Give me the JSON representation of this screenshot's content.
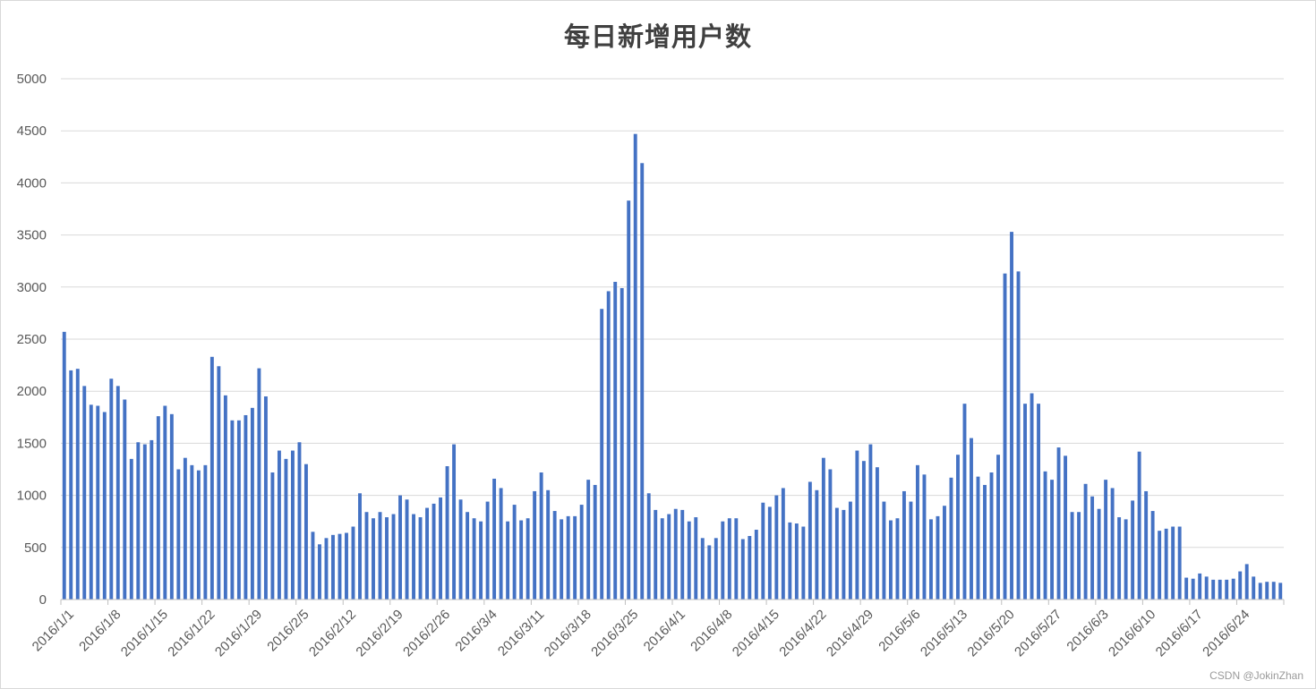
{
  "chart_data": {
    "type": "bar",
    "title": "每日新增用户数",
    "xlabel": "",
    "ylabel": "",
    "ylim": [
      0,
      5000
    ],
    "yticks": [
      0,
      500,
      1000,
      1500,
      2000,
      2500,
      3000,
      3500,
      4000,
      4500,
      5000
    ],
    "grid": true,
    "legend": "none",
    "bar_color": "#4472c4",
    "grid_color": "#d9d9d9",
    "x_tick_labels": [
      "2016/1/1",
      "2016/1/8",
      "2016/1/15",
      "2016/1/22",
      "2016/1/29",
      "2016/2/5",
      "2016/2/12",
      "2016/2/19",
      "2016/2/26",
      "2016/3/4",
      "2016/3/11",
      "2016/3/18",
      "2016/3/25",
      "2016/4/1",
      "2016/4/8",
      "2016/4/15",
      "2016/4/22",
      "2016/4/29",
      "2016/5/6",
      "2016/5/13",
      "2016/5/20",
      "2016/5/27",
      "2016/6/3",
      "2016/6/10",
      "2016/6/17",
      "2016/6/24"
    ],
    "start_date": "2016/1/1",
    "values": [
      2570,
      2200,
      2215,
      2050,
      1870,
      1860,
      1800,
      2120,
      2050,
      1920,
      1350,
      1510,
      1490,
      1530,
      1760,
      1860,
      1780,
      1250,
      1360,
      1290,
      1240,
      1290,
      2330,
      2240,
      1960,
      1720,
      1720,
      1770,
      1840,
      2220,
      1950,
      1220,
      1430,
      1350,
      1430,
      1510,
      1300,
      650,
      530,
      590,
      620,
      630,
      640,
      700,
      1020,
      840,
      780,
      840,
      790,
      820,
      1000,
      960,
      820,
      790,
      880,
      920,
      980,
      1280,
      1490,
      960,
      840,
      780,
      750,
      940,
      1160,
      1070,
      750,
      910,
      760,
      780,
      1040,
      1220,
      1050,
      850,
      770,
      800,
      800,
      910,
      1150,
      1100,
      2790,
      2960,
      3050,
      2990,
      3830,
      4470,
      4190,
      1020,
      860,
      780,
      820,
      870,
      860,
      750,
      790,
      590,
      520,
      590,
      750,
      780,
      780,
      580,
      610,
      670,
      930,
      890,
      1000,
      1070,
      740,
      730,
      700,
      1130,
      1050,
      1360,
      1250,
      880,
      860,
      940,
      1430,
      1330,
      1490,
      1270,
      940,
      760,
      780,
      1040,
      940,
      1290,
      1200,
      770,
      800,
      900,
      1170,
      1390,
      1880,
      1550,
      1180,
      1100,
      1220,
      1390,
      3130,
      3530,
      3150,
      1880,
      1980,
      1880,
      1230,
      1150,
      1460,
      1380,
      840,
      840,
      1110,
      990,
      870,
      1150,
      1070,
      790,
      770,
      950,
      1420,
      1040,
      850,
      660,
      680,
      700,
      700,
      210,
      200,
      250,
      220,
      190,
      190,
      190,
      200,
      270,
      340,
      220,
      160,
      170,
      170,
      160
    ]
  },
  "watermark": "CSDN @JokinZhan"
}
